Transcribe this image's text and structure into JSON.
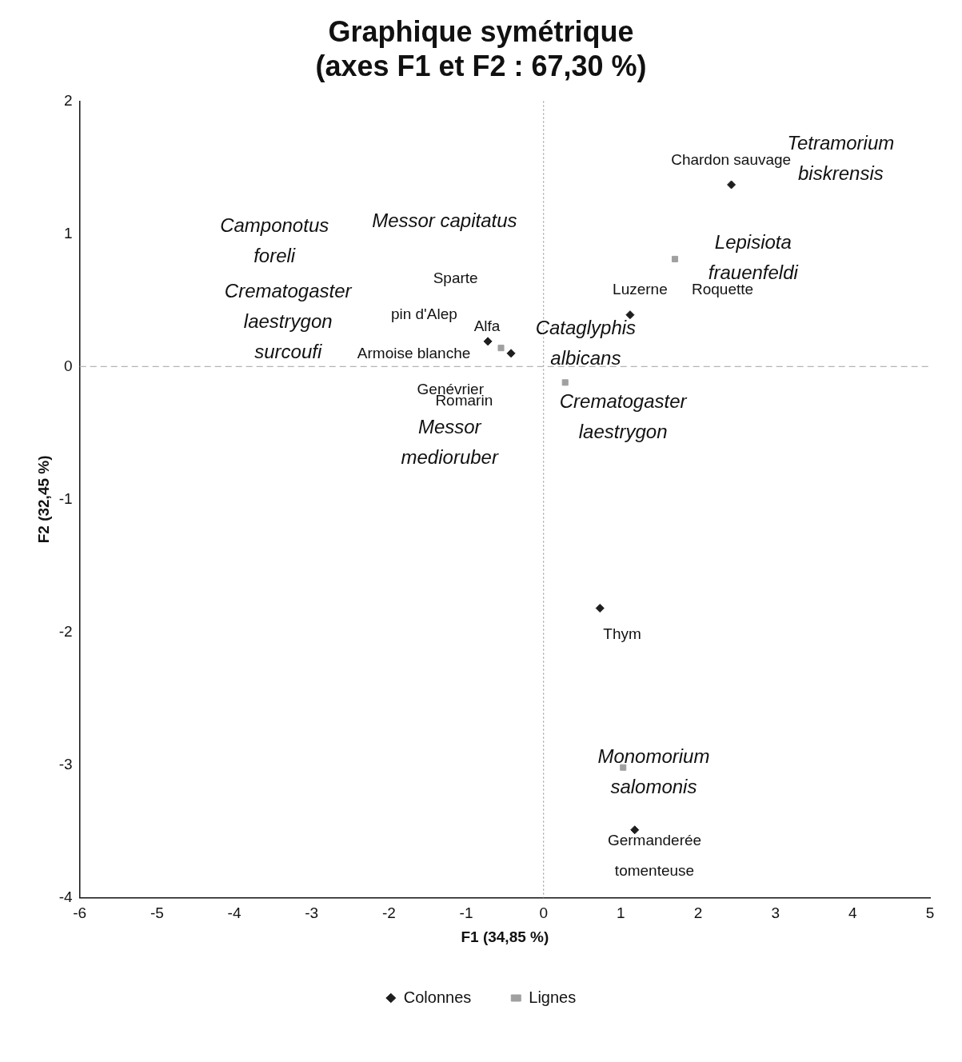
{
  "chart_data": {
    "type": "scatter",
    "title": [
      "Graphique symétrique",
      "(axes F1 et F2 : 67,30 %)"
    ],
    "xlabel": "F1 (34,85 %)",
    "ylabel": "F2 (32,45 %)",
    "xlim": [
      -6,
      5
    ],
    "xticks": [
      -6,
      -5,
      -4,
      -3,
      -2,
      -1,
      0,
      1,
      2,
      3,
      4,
      5
    ],
    "ylim": [
      -4,
      2
    ],
    "yticks": [
      -4,
      -3,
      -2,
      -1,
      0,
      1,
      2
    ],
    "grid": false,
    "legend": "bottom",
    "series": [
      {
        "name": "Colonnes",
        "color": "#1e1e1e",
        "marker": "diamond",
        "x": [
          2.43,
          1.12,
          0.73,
          1.18,
          -0.72,
          -0.42
        ],
        "values": [
          1.37,
          0.39,
          -1.82,
          -3.49,
          0.19,
          0.1
        ]
      },
      {
        "name": "Lignes",
        "color": "#a0a0a0",
        "marker": "square",
        "x": [
          -0.55,
          0.28,
          1.03,
          1.7
        ],
        "values": [
          0.14,
          -0.12,
          -3.02,
          0.81
        ]
      }
    ],
    "ref_lines": [
      {
        "axis": "x",
        "value": 0,
        "color": "#9a9a9a",
        "line_style": "dotted"
      },
      {
        "axis": "y",
        "value": 0,
        "color": "#b4b4b4",
        "line_style": "dashed"
      }
    ],
    "annotations": [
      "Tetramorium\nbiskrensis",
      "Chardon sauvage",
      "Lepisiota\nfrauenfeldi",
      "Luzerne",
      "Roquette",
      "Cataglyphis\nalbicans",
      "Crematogaster\nlaestrygon",
      "Messor capitatus",
      "Camponotus\nforeli",
      "Crematogaster\nlaestrygon\nsurcoufi",
      "Sparte",
      "pin d'Alep",
      "Alfa",
      "Armoise blanche",
      "Genévrier",
      "Romarin",
      "Messor\nmedioruber",
      "Thym",
      "Monomorium\nsalomonis",
      "Germanderée\ntomenteuse"
    ]
  }
}
